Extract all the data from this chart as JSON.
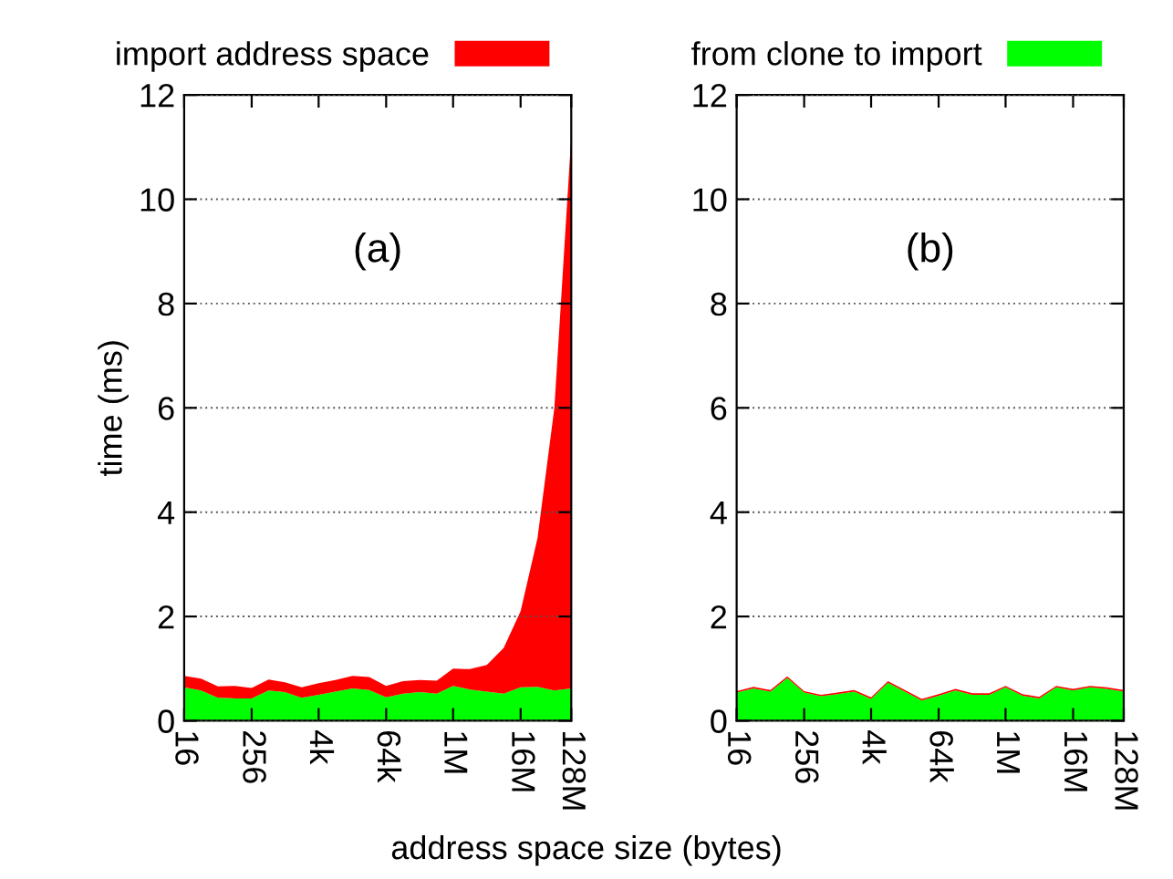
{
  "chart_data": [
    {
      "type": "area",
      "stacked": true,
      "xlabel": "address space size (bytes)",
      "ylabel": "time (ms)",
      "annotations": [
        "(a)"
      ],
      "x": [
        16,
        32,
        64,
        128,
        256,
        512,
        1000,
        2000,
        4000,
        8000,
        16000,
        32000,
        64000,
        128000,
        256000,
        512000,
        1000000,
        2000000,
        4000000,
        8000000,
        16000000,
        32000000,
        64000000,
        128000000
      ],
      "series": [
        {
          "color": "#00ff00",
          "values": [
            0.64,
            0.58,
            0.44,
            0.43,
            0.43,
            0.58,
            0.55,
            0.44,
            0.5,
            0.56,
            0.62,
            0.59,
            0.45,
            0.52,
            0.55,
            0.52,
            0.67,
            0.6,
            0.56,
            0.52,
            0.64,
            0.65,
            0.58,
            0.62
          ]
        },
        {
          "name": "import address space",
          "color": "#ff0000",
          "values": [
            0.22,
            0.23,
            0.22,
            0.24,
            0.2,
            0.21,
            0.19,
            0.2,
            0.22,
            0.22,
            0.24,
            0.25,
            0.22,
            0.24,
            0.23,
            0.25,
            0.33,
            0.39,
            0.51,
            0.88,
            1.46,
            2.85,
            5.42,
            10.58
          ]
        }
      ],
      "log": "x",
      "xlim": [
        16,
        128000000
      ],
      "xticks": [
        {
          "value": 16,
          "label": "16"
        },
        {
          "value": 256,
          "label": "256"
        },
        {
          "value": 4000,
          "label": "4k"
        },
        {
          "value": 64000,
          "label": "64k"
        },
        {
          "value": 1000000,
          "label": "1M"
        },
        {
          "value": 16000000,
          "label": "16M"
        },
        {
          "value": 128000000,
          "label": "128M"
        }
      ],
      "ylim": [
        0,
        12
      ],
      "yticks": [
        0,
        2,
        4,
        6,
        8,
        10,
        12
      ],
      "grid": "y",
      "legend": "top"
    },
    {
      "type": "area",
      "stacked": true,
      "annotations": [
        "(b)"
      ],
      "x": [
        16,
        32,
        64,
        128,
        256,
        512,
        1000,
        2000,
        4000,
        8000,
        16000,
        32000,
        64000,
        128000,
        256000,
        512000,
        1000000,
        2000000,
        4000000,
        8000000,
        16000000,
        32000000,
        64000000,
        128000000
      ],
      "series": [
        {
          "name": "from clone to import",
          "color": "#00ff00",
          "values": [
            0.54,
            0.62,
            0.56,
            0.82,
            0.54,
            0.47,
            0.51,
            0.56,
            0.42,
            0.73,
            0.56,
            0.39,
            0.48,
            0.58,
            0.5,
            0.5,
            0.64,
            0.48,
            0.43,
            0.64,
            0.58,
            0.64,
            0.61,
            0.56
          ]
        },
        {
          "color": "#ff0000",
          "values": [
            0.03,
            0.03,
            0.03,
            0.03,
            0.03,
            0.03,
            0.03,
            0.03,
            0.03,
            0.03,
            0.03,
            0.03,
            0.03,
            0.03,
            0.03,
            0.03,
            0.03,
            0.03,
            0.03,
            0.03,
            0.03,
            0.03,
            0.03,
            0.03
          ]
        }
      ],
      "log": "x",
      "xlim": [
        16,
        128000000
      ],
      "xticks": [
        {
          "value": 16,
          "label": "16"
        },
        {
          "value": 256,
          "label": "256"
        },
        {
          "value": 4000,
          "label": "4k"
        },
        {
          "value": 64000,
          "label": "64k"
        },
        {
          "value": 1000000,
          "label": "1M"
        },
        {
          "value": 16000000,
          "label": "16M"
        },
        {
          "value": 128000000,
          "label": "128M"
        }
      ],
      "ylim": [
        0,
        12
      ],
      "yticks": [
        0,
        2,
        4,
        6,
        8,
        10,
        12
      ],
      "grid": "y",
      "legend": "top"
    }
  ]
}
